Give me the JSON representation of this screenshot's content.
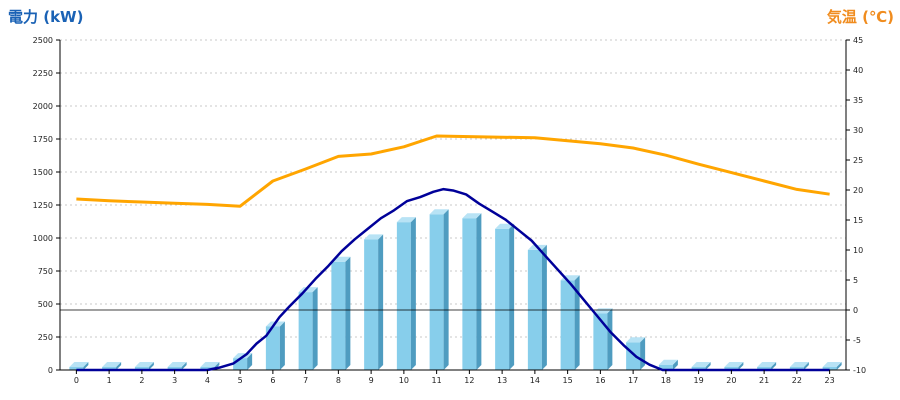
{
  "chart_data": {
    "type": "bar",
    "left_axis_title": "電力 (kW)",
    "right_axis_title": "気温 (℃)",
    "categories": [
      "0",
      "1",
      "2",
      "3",
      "4",
      "5",
      "6",
      "7",
      "8",
      "9",
      "10",
      "11",
      "12",
      "13",
      "14",
      "15",
      "16",
      "17",
      "18",
      "19",
      "20",
      "21",
      "22",
      "23"
    ],
    "left_axis": {
      "ylim": [
        0,
        2500
      ],
      "ticks": [
        "0",
        "250",
        "500",
        "750",
        "1000",
        "1250",
        "1500",
        "1750",
        "2000",
        "2250",
        "2500"
      ]
    },
    "right_axis": {
      "ylim": [
        -10,
        45
      ],
      "ticks": [
        "-10",
        "-5",
        "0",
        "5",
        "10",
        "15",
        "20",
        "25",
        "30",
        "35",
        "40",
        "45"
      ]
    },
    "grid": true,
    "series": [
      {
        "type": "bar",
        "axis": "left",
        "values": [
          0,
          0,
          0,
          0,
          0,
          90,
          330,
          590,
          820,
          990,
          1120,
          1180,
          1150,
          1070,
          910,
          680,
          430,
          210,
          40,
          0,
          0,
          0,
          0,
          0
        ]
      },
      {
        "type": "line",
        "axis": "left",
        "x": [
          0,
          1,
          2,
          3,
          4,
          4.4,
          4.8,
          5.2,
          5.5,
          5.8,
          6.2,
          6.5,
          6.9,
          7.3,
          7.7,
          8.1,
          8.5,
          8.9,
          9.3,
          9.7,
          10.1,
          10.5,
          10.9,
          11.2,
          11.5,
          11.9,
          12.3,
          12.7,
          13.1,
          13.5,
          13.9,
          14.3,
          14.7,
          15.1,
          15.5,
          15.9,
          16.3,
          16.7,
          17.1,
          17.5,
          17.9,
          18.2,
          19,
          20,
          21,
          22,
          23
        ],
        "values": [
          0,
          0,
          0,
          0,
          0,
          20,
          50,
          120,
          200,
          260,
          400,
          480,
          580,
          690,
          790,
          900,
          990,
          1070,
          1150,
          1210,
          1280,
          1310,
          1350,
          1370,
          1360,
          1330,
          1260,
          1200,
          1140,
          1060,
          980,
          870,
          760,
          650,
          530,
          410,
          290,
          190,
          100,
          40,
          0,
          0,
          0,
          0,
          0,
          0,
          0
        ]
      },
      {
        "type": "line",
        "axis": "right",
        "values": [
          18.5,
          18.2,
          18.0,
          17.8,
          17.6,
          17.3,
          21.5,
          23.5,
          25.6,
          26.0,
          27.2,
          29.0,
          28.9,
          28.8,
          28.7,
          28.2,
          27.7,
          27.0,
          25.8,
          24.3,
          22.9,
          21.5,
          20.1,
          19.3
        ]
      }
    ],
    "colors": {
      "bar": "#87ceeb",
      "bar_side": "#4f9cc0",
      "bar_top": "#b8e3f5",
      "power_line": "#000099",
      "temp_line": "#ffa500",
      "left_title": "#1a62b5",
      "right_title": "#f08c1e",
      "grid": "#c8c8c8",
      "axis": "#000000"
    }
  }
}
